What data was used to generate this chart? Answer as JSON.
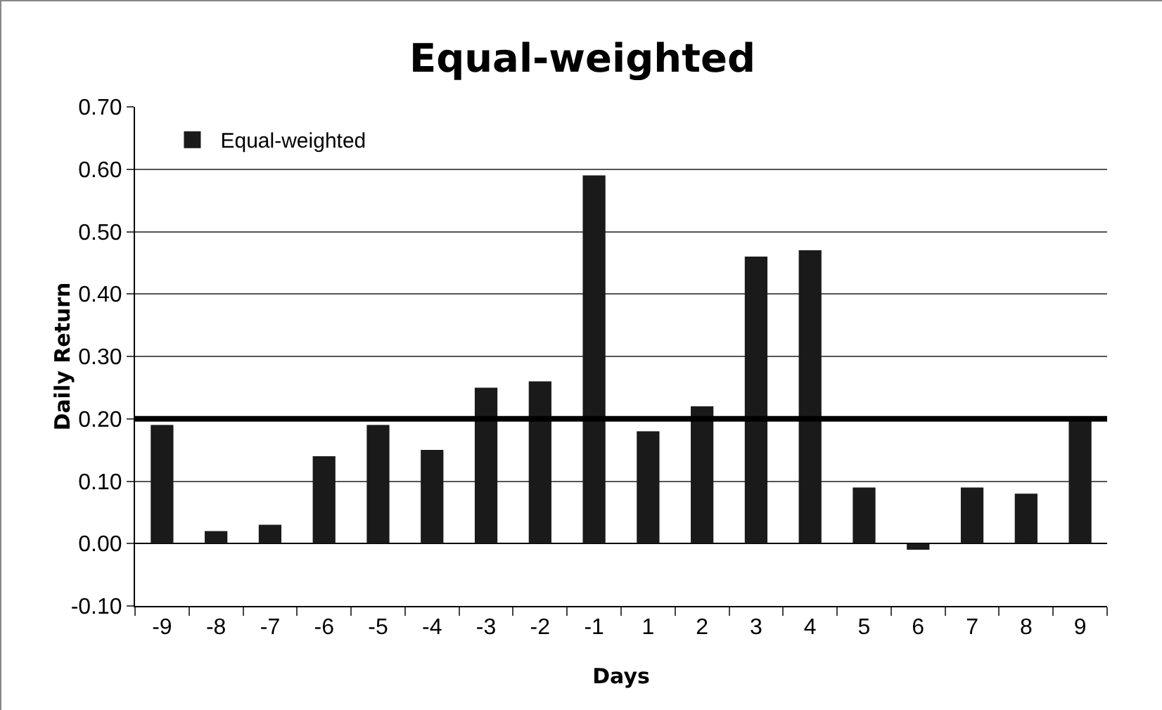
{
  "chart_data": {
    "type": "bar",
    "title": "Equal-weighted",
    "xlabel": "Days",
    "ylabel": "Daily Return",
    "categories": [
      "-9",
      "-8",
      "-7",
      "-6",
      "-5",
      "-4",
      "-3",
      "-2",
      "-1",
      "1",
      "2",
      "3",
      "4",
      "5",
      "6",
      "7",
      "8",
      "9"
    ],
    "series": [
      {
        "name": "Equal-weighted",
        "color": "#1a1a1a",
        "values": [
          0.19,
          0.02,
          0.03,
          0.14,
          0.19,
          0.15,
          0.25,
          0.26,
          0.59,
          0.18,
          0.22,
          0.46,
          0.47,
          0.09,
          -0.01,
          0.09,
          0.08,
          0.2
        ]
      }
    ],
    "ylim": [
      -0.1,
      0.7
    ],
    "yticks": [
      {
        "value": -0.1,
        "label": "-0.10"
      },
      {
        "value": 0,
        "label": "0.00"
      },
      {
        "value": 0.1,
        "label": "0.10"
      },
      {
        "value": 0.2,
        "label": "0.20"
      },
      {
        "value": 0.3,
        "label": "0.30"
      },
      {
        "value": 0.4,
        "label": "0.40"
      },
      {
        "value": 0.5,
        "label": "0.50"
      },
      {
        "value": 0.6,
        "label": "0.60"
      },
      {
        "value": 0.7,
        "label": "0.70"
      }
    ],
    "ref_lines": [
      {
        "axis": "y",
        "value": 0.2,
        "color": "#000000"
      }
    ],
    "grid": "y",
    "legend": "top left"
  }
}
